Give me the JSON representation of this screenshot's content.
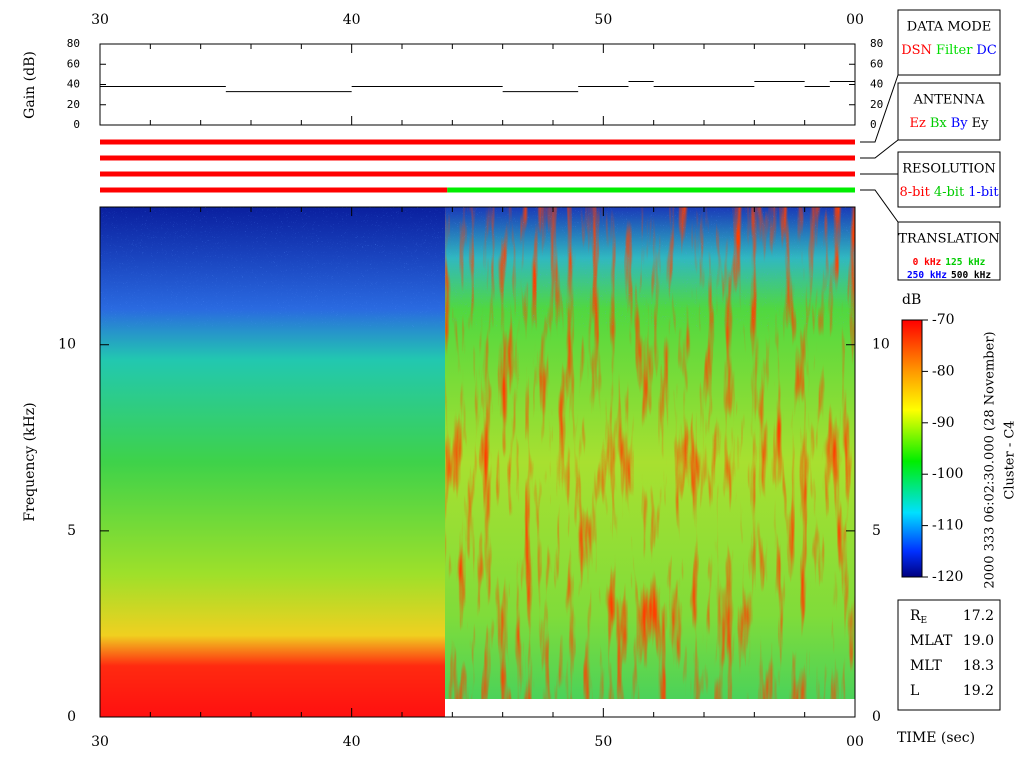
{
  "time_axis": {
    "xlim": [
      30,
      60
    ],
    "xticks": [
      30,
      40,
      50,
      {
        "value": 60,
        "label": "00"
      }
    ],
    "minor_xticks": [
      32,
      34,
      36,
      38,
      42,
      44,
      46,
      48,
      52,
      54,
      56,
      58
    ],
    "xlabel": "TIME (sec)"
  },
  "gain_panel": {
    "ylabel": "Gain (dB)",
    "ylim": [
      0,
      80
    ],
    "yticks": [
      0,
      20,
      40,
      60,
      80
    ],
    "segment_starts": [
      30,
      35,
      40,
      46,
      49,
      51,
      52,
      56,
      58,
      59
    ],
    "values": [
      38,
      33,
      38,
      33,
      38,
      43,
      38,
      43,
      38,
      43
    ],
    "color": "#000000"
  },
  "status_rows": [
    {
      "segments": [
        {
          "start": 30,
          "end": 60,
          "color": "#ff0000"
        }
      ]
    },
    {
      "segments": [
        {
          "start": 30,
          "end": 60,
          "color": "#ff0000"
        }
      ]
    },
    {
      "segments": [
        {
          "start": 30,
          "end": 60,
          "color": "#ff0000"
        }
      ]
    },
    {
      "segments": [
        {
          "start": 30,
          "end": 43.8,
          "color": "#ff0000"
        },
        {
          "start": 43.8,
          "end": 60,
          "color": "#00ee00"
        }
      ]
    }
  ],
  "spectrogram": {
    "ylabel": "Frequency (kHz)",
    "ylim": [
      0,
      13.7
    ],
    "yticks": [
      0,
      5,
      10
    ]
  },
  "colorbar": {
    "title": "dB",
    "lim": [
      -120,
      -70
    ],
    "ticks": [
      -70,
      -80,
      -90,
      -100,
      -110,
      -120
    ]
  },
  "legend_boxes": [
    {
      "title": "DATA MODE",
      "lines": [
        [
          {
            "text": "DSN",
            "color": "#ff0000"
          },
          {
            "text": "Filter",
            "color": "#00dd00"
          },
          {
            "text": "DC",
            "color": "#0000ff"
          }
        ]
      ]
    },
    {
      "title": "ANTENNA",
      "lines": [
        [
          {
            "text": "Ez",
            "color": "#ff0000"
          },
          {
            "text": "Bx",
            "color": "#00cc00"
          },
          {
            "text": "By",
            "color": "#0000ff"
          },
          {
            "text": "Ey",
            "color": "#000000"
          }
        ]
      ]
    },
    {
      "title": "RESOLUTION",
      "lines": [
        [
          {
            "text": "8-bit",
            "color": "#ff0000"
          },
          {
            "text": "4-bit",
            "color": "#00cc00"
          },
          {
            "text": "1-bit",
            "color": "#0000ff"
          }
        ]
      ]
    },
    {
      "title": "TRANSLATION",
      "lines": [
        [
          {
            "text": "0 kHz",
            "color": "#ff0000"
          },
          {
            "text": "125 kHz",
            "color": "#00cc00"
          }
        ],
        [
          {
            "text": "250 kHz",
            "color": "#0000ff"
          },
          {
            "text": "500 kHz",
            "color": "#000000"
          }
        ]
      ]
    }
  ],
  "info": {
    "timestamp": "2000 333 06:02:30.000 (28 November)",
    "spacecraft": "Cluster - C4",
    "rows": [
      {
        "label": "R",
        "sub": "E",
        "value": "17.2"
      },
      {
        "label": "MLAT",
        "value": "19.0"
      },
      {
        "label": "MLT",
        "value": "18.3"
      },
      {
        "label": "L",
        "value": "19.2"
      }
    ]
  }
}
